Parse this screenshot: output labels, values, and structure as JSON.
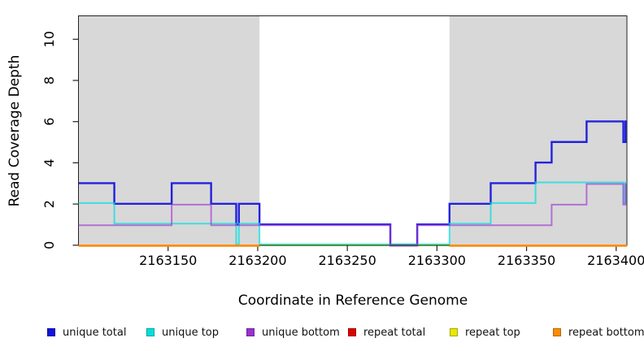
{
  "chart_data": {
    "type": "line",
    "line_style": "step",
    "title": "",
    "xlabel": "Coordinate in Reference Genome",
    "ylabel": "Read Coverage Depth",
    "xlim": [
      2163100,
      2163406
    ],
    "ylim": [
      0,
      11.1
    ],
    "x_ticks": [
      2163150,
      2163200,
      2163250,
      2163300,
      2163350,
      2163400
    ],
    "y_ticks": [
      0,
      2,
      4,
      6,
      8,
      10
    ],
    "grid": false,
    "legend_position": "bottom",
    "background_shading": {
      "color": "#d8d8d8",
      "meaning": "repeat regions of reference genome",
      "regions": [
        [
          2163100,
          2163201
        ],
        [
          2163307,
          2163406
        ]
      ]
    },
    "series": [
      {
        "name": "unique total",
        "color": "#1212dd",
        "steps": [
          [
            2163100,
            3
          ],
          [
            2163120,
            2
          ],
          [
            2163152,
            3
          ],
          [
            2163174,
            2
          ],
          [
            2163188,
            1
          ],
          [
            2163189.5,
            2
          ],
          [
            2163201,
            1
          ],
          [
            2163274,
            0
          ],
          [
            2163289,
            1
          ],
          [
            2163307,
            2
          ],
          [
            2163330,
            3
          ],
          [
            2163355,
            4
          ],
          [
            2163364,
            5
          ],
          [
            2163383.5,
            6
          ],
          [
            2163404,
            5
          ],
          [
            2163405.2,
            6
          ]
        ]
      },
      {
        "name": "unique top",
        "color": "#00dfdf",
        "steps": [
          [
            2163100,
            2
          ],
          [
            2163120,
            1
          ],
          [
            2163188,
            0
          ],
          [
            2163189.5,
            1
          ],
          [
            2163201,
            0
          ],
          [
            2163307,
            1
          ],
          [
            2163330,
            2
          ],
          [
            2163355,
            3
          ],
          [
            2163404,
            2
          ],
          [
            2163405.2,
            3
          ]
        ]
      },
      {
        "name": "unique bottom",
        "color": "#9b30d0",
        "steps": [
          [
            2163100,
            1
          ],
          [
            2163152,
            2
          ],
          [
            2163174,
            1
          ],
          [
            2163274,
            0
          ],
          [
            2163289,
            1
          ],
          [
            2163364,
            2
          ],
          [
            2163383.5,
            3
          ],
          [
            2163404,
            2
          ],
          [
            2163405.2,
            3
          ]
        ]
      },
      {
        "name": "repeat total",
        "color": "#dd0000",
        "steps": [
          [
            2163100,
            0
          ],
          [
            2163201,
            null
          ],
          [
            2163307,
            0
          ]
        ]
      },
      {
        "name": "repeat top",
        "color": "#e8e800",
        "steps": [
          [
            2163100,
            0
          ]
        ]
      },
      {
        "name": "repeat bottom",
        "color": "#ff8c00",
        "steps": [
          [
            2163100,
            0
          ],
          [
            2163201,
            null
          ],
          [
            2163307,
            0
          ]
        ]
      }
    ]
  }
}
